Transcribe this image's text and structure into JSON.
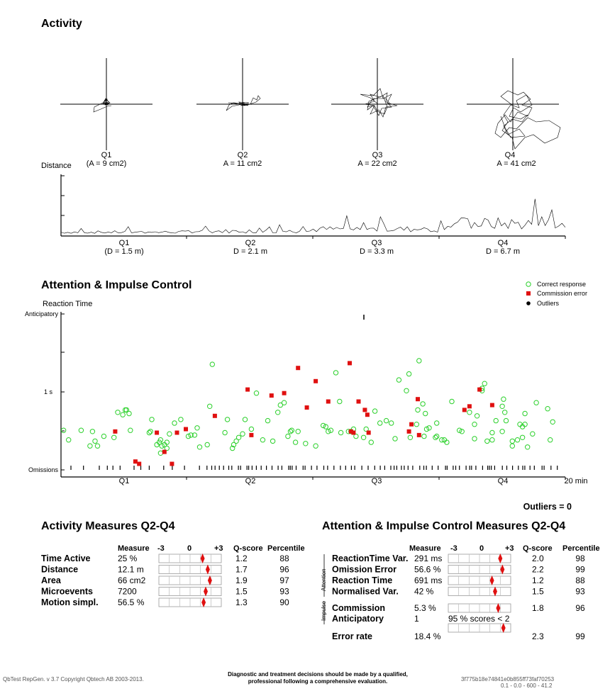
{
  "activity": {
    "title": "Activity",
    "quarters": [
      {
        "label": "Q1",
        "area_label": "(A = 9 cm2)",
        "area_cm2": 9
      },
      {
        "label": "Q2",
        "area_label": "A = 11 cm2",
        "area_cm2": 11
      },
      {
        "label": "Q3",
        "area_label": "A = 22 cm2",
        "area_cm2": 22
      },
      {
        "label": "Q4",
        "area_label": "A = 41 cm2",
        "area_cm2": 41
      }
    ],
    "distance_title": "Distance",
    "distance_labels": [
      {
        "q": "Q1",
        "d": "(D =  1.5 m)"
      },
      {
        "q": "Q2",
        "d": "D =  2.1 m"
      },
      {
        "q": "Q3",
        "d": "D =  3.3 m"
      },
      {
        "q": "Q4",
        "d": "D =  6.7 m"
      }
    ]
  },
  "attention": {
    "title": "Attention & Impulse Control",
    "y_title": "Reaction Time",
    "y_ticks": [
      "Anticipatory",
      "1 s",
      "Omissions"
    ],
    "x_labels": [
      "Q1",
      "Q2",
      "Q3",
      "Q4"
    ],
    "x_end_label": "20 min",
    "legend": {
      "correct": "Correct response",
      "commission": "Commission error",
      "outliers": "Outliers"
    },
    "outliers_text": "Outliers = 0",
    "colors": {
      "correct": "#2ad02a",
      "commission": "#e01010",
      "outlier": "#000000"
    }
  },
  "activity_measures": {
    "title": "Activity Measures Q2-Q4",
    "headers": {
      "measure": "Measure",
      "scale_min": "-3",
      "scale_mid": "0",
      "scale_max": "+3",
      "qscore": "Q-score",
      "percentile": "Percentile"
    },
    "rows": [
      {
        "name": "Time Active",
        "measure": "25 %",
        "q": "1.2",
        "qv": 1.2,
        "pct": "88"
      },
      {
        "name": "Distance",
        "measure": "12.1 m",
        "q": "1.7",
        "qv": 1.7,
        "pct": "96"
      },
      {
        "name": "Area",
        "measure": "66 cm2",
        "q": "1.9",
        "qv": 1.9,
        "pct": "97"
      },
      {
        "name": "Microevents",
        "measure": "7200",
        "q": "1.5",
        "qv": 1.5,
        "pct": "93"
      },
      {
        "name": "Motion simpl.",
        "measure": "56.5 %",
        "q": "1.3",
        "qv": 1.3,
        "pct": "90"
      }
    ]
  },
  "attention_measures": {
    "title": "Attention & Impulse Control Measures Q2-Q4",
    "headers": {
      "measure": "Measure",
      "scale_min": "-3",
      "scale_mid": "0",
      "scale_max": "+3",
      "qscore": "Q-score",
      "percentile": "Percentile"
    },
    "group_attention": "Attention",
    "group_impulse": "Impulse",
    "rows": [
      {
        "name": "ReactionTime Var.",
        "measure": "291 ms",
        "q": "2.0",
        "qv": 2.0,
        "pct": "98"
      },
      {
        "name": "Omission Error",
        "measure": "56.6 %",
        "q": "2.2",
        "qv": 2.2,
        "pct": "99"
      },
      {
        "name": "Reaction Time",
        "measure": "691 ms",
        "q": "1.2",
        "qv": 1.2,
        "pct": "88"
      },
      {
        "name": "Normalised Var.",
        "measure": "42 %",
        "q": "1.5",
        "qv": 1.5,
        "pct": "93"
      }
    ],
    "impulse_rows": [
      {
        "name": "Commission",
        "measure": "5.3 %",
        "q": "1.8",
        "qv": 1.8,
        "pct": "96"
      },
      {
        "name": "Anticipatory",
        "measure": "1",
        "note": "95 % scores < 2"
      }
    ],
    "error_rate": {
      "name": "Error rate",
      "measure": "18.4 %",
      "q": "2.3",
      "qv": 2.3,
      "pct": "99"
    }
  },
  "footer": {
    "left": "QbTest RepGen. v 3.7 Copyright Qbtech AB 2003-2013.",
    "center1": "Diagnostic and treatment decisions should be made by a qualified,",
    "center2": "professional following a comprehensive evaluation.",
    "right1": "3f775b18e74841e0b855ff73faf70253",
    "right2": "0.1 - 0.0 - 600 - 41.2"
  },
  "chart_data": [
    {
      "type": "line",
      "title": "Distance",
      "categories": [
        "Q1",
        "Q2",
        "Q3",
        "Q4"
      ],
      "values": [
        1.5,
        2.1,
        3.3,
        6.7
      ]
    },
    {
      "type": "scatter",
      "title": "Attention & Impulse Control",
      "ylabel": "Reaction Time",
      "xlabel": "20 min",
      "x_range": [
        0,
        20
      ],
      "series": [
        {
          "name": "Correct response",
          "x_unit": "min",
          "y_unit": "s",
          "points": [
            [
              0.1,
              0.68
            ],
            [
              0.3,
              0.6
            ],
            [
              0.8,
              0.68
            ],
            [
              1.15,
              0.55
            ],
            [
              1.25,
              0.67
            ],
            [
              1.35,
              0.59
            ],
            [
              1.45,
              0.55
            ],
            [
              1.7,
              0.63
            ],
            [
              2.1,
              0.62
            ],
            [
              2.25,
              0.83
            ],
            [
              2.45,
              0.81
            ],
            [
              2.55,
              0.85
            ],
            [
              2.6,
              0.85
            ],
            [
              2.7,
              0.82
            ],
            [
              2.75,
              0.68
            ],
            [
              3.5,
              0.66
            ],
            [
              3.55,
              0.67
            ],
            [
              3.6,
              0.77
            ],
            [
              3.8,
              0.56
            ],
            [
              3.9,
              0.58
            ],
            [
              3.95,
              0.6
            ],
            [
              4.0,
              0.55
            ],
            [
              4.1,
              0.56
            ],
            [
              4.2,
              0.58
            ],
            [
              4.3,
              0.65
            ],
            [
              4.5,
              0.74
            ],
            [
              4.75,
              0.77
            ],
            [
              5.05,
              0.63
            ],
            [
              5.15,
              0.64
            ],
            [
              5.3,
              0.64
            ],
            [
              5.4,
              0.7
            ],
            [
              5.5,
              0.54
            ],
            [
              5.8,
              0.56
            ],
            [
              5.9,
              0.88
            ],
            [
              6.0,
              1.23
            ],
            [
              6.5,
              0.66
            ],
            [
              6.6,
              0.77
            ],
            [
              6.8,
              0.53
            ],
            [
              6.85,
              0.56
            ],
            [
              6.95,
              0.59
            ],
            [
              7.05,
              0.62
            ],
            [
              7.2,
              0.65
            ],
            [
              7.3,
              0.77
            ],
            [
              7.55,
              0.69
            ],
            [
              7.75,
              0.99
            ],
            [
              8.0,
              0.6
            ],
            [
              8.2,
              0.76
            ],
            [
              8.6,
              0.83
            ],
            [
              8.7,
              0.89
            ],
            [
              8.85,
              0.91
            ],
            [
              9.0,
              0.63
            ],
            [
              9.15,
              0.68
            ],
            [
              9.3,
              0.58
            ],
            [
              9.4,
              0.67
            ],
            [
              9.7,
              0.57
            ],
            [
              10.1,
              0.55
            ],
            [
              10.4,
              0.72
            ],
            [
              10.5,
              0.71
            ],
            [
              10.6,
              0.67
            ],
            [
              10.7,
              0.68
            ],
            [
              10.9,
              1.16
            ],
            [
              11.05,
              0.92
            ],
            [
              11.1,
              0.66
            ],
            [
              11.4,
              0.67
            ],
            [
              11.5,
              0.67
            ],
            [
              11.7,
              0.63
            ],
            [
              12.0,
              0.62
            ],
            [
              12.1,
              0.69
            ],
            [
              12.3,
              0.58
            ],
            [
              12.45,
              0.84
            ],
            [
              12.65,
              0.74
            ],
            [
              12.9,
              0.76
            ],
            [
              13.1,
              0.74
            ],
            [
              13.25,
              0.61
            ],
            [
              13.4,
              1.1
            ],
            [
              13.7,
              1.01
            ],
            [
              13.8,
              1.15
            ],
            [
              13.85,
              0.62
            ],
            [
              14.1,
              0.73
            ],
            [
              14.15,
              0.85
            ],
            [
              14.2,
              1.26
            ],
            [
              14.35,
              0.9
            ],
            [
              14.4,
              0.63
            ],
            [
              14.5,
              0.69
            ],
            [
              14.6,
              0.7
            ],
            [
              14.9,
              0.63
            ],
            [
              15.2,
              0.6
            ],
            [
              15.3,
              0.58
            ],
            [
              15.8,
              0.68
            ],
            [
              15.9,
              0.67
            ],
            [
              16.2,
              0.83
            ],
            [
              16.4,
              0.73
            ],
            [
              16.5,
              0.8
            ],
            [
              17.1,
              0.6
            ],
            [
              17.25,
              0.76
            ],
            [
              17.5,
              0.88
            ],
            [
              17.65,
              0.76
            ],
            [
              18.1,
              0.6
            ],
            [
              18.4,
              0.82
            ],
            [
              18.85,
              0.91
            ],
            [
              19.3,
              0.86
            ],
            [
              18.3,
              0.62
            ],
            [
              17.9,
              0.59
            ],
            [
              18.5,
              0.54
            ],
            [
              16.8,
              1.07
            ],
            [
              16.7,
              1.01
            ],
            [
              17.55,
              0.94
            ],
            [
              17.6,
              0.83
            ],
            [
              18.3,
              0.71
            ],
            [
              18.4,
              0.73
            ],
            [
              16.9,
              0.59
            ],
            [
              15.5,
              0.92
            ],
            [
              14.45,
              0.82
            ],
            [
              11.6,
              0.69
            ],
            [
              9.1,
              0.67
            ],
            [
              8.4,
              0.59
            ],
            [
              3.95,
              0.49
            ],
            [
              4.2,
              0.53
            ],
            [
              14.9,
              0.74
            ],
            [
              14.85,
              0.62
            ],
            [
              16.4,
              0.61
            ],
            [
              17.5,
              0.67
            ],
            [
              17.1,
              0.66
            ],
            [
              15.1,
              0.6
            ],
            [
              16.7,
              1.03
            ],
            [
              18.2,
              0.73
            ],
            [
              17.9,
              0.55
            ],
            [
              19.4,
              0.6
            ],
            [
              19.5,
              0.75
            ],
            [
              18.7,
              0.65
            ]
          ]
        },
        {
          "name": "Commission error",
          "x_unit": "min",
          "y_unit": "s",
          "points": [
            [
              2.15,
              0.67
            ],
            [
              2.95,
              0.42
            ],
            [
              3.1,
              0.4
            ],
            [
              3.8,
              0.66
            ],
            [
              4.1,
              0.5
            ],
            [
              4.4,
              0.4
            ],
            [
              4.6,
              0.66
            ],
            [
              4.95,
              0.69
            ],
            [
              6.1,
              0.8
            ],
            [
              7.4,
              1.02
            ],
            [
              7.55,
              0.64
            ],
            [
              8.35,
              0.97
            ],
            [
              8.85,
              0.99
            ],
            [
              9.4,
              1.2
            ],
            [
              9.75,
              0.87
            ],
            [
              10.1,
              1.09
            ],
            [
              10.6,
              0.92
            ],
            [
              11.5,
              0.67
            ],
            [
              11.45,
              1.24
            ],
            [
              11.6,
              0.66
            ],
            [
              11.8,
              0.92
            ],
            [
              12.05,
              0.85
            ],
            [
              12.15,
              0.81
            ],
            [
              12.2,
              0.66
            ],
            [
              13.8,
              0.67
            ],
            [
              13.9,
              0.73
            ],
            [
              14.15,
              0.94
            ],
            [
              14.2,
              0.64
            ],
            [
              16.0,
              0.85
            ],
            [
              16.2,
              0.88
            ],
            [
              16.6,
              1.02
            ],
            [
              17.1,
              0.89
            ]
          ]
        },
        {
          "name": "Outliers",
          "points": [],
          "count": 0
        }
      ]
    },
    {
      "type": "table",
      "title": "Activity Measures Q2-Q4",
      "columns": [
        "Measure",
        "Q-score",
        "Percentile"
      ],
      "rows": [
        [
          "Time Active",
          "25 %",
          1.2,
          88
        ],
        [
          "Distance",
          "12.1 m",
          1.7,
          96
        ],
        [
          "Area",
          "66 cm2",
          1.9,
          97
        ],
        [
          "Microevents",
          "7200",
          1.5,
          93
        ],
        [
          "Motion simpl.",
          "56.5 %",
          1.3,
          90
        ]
      ]
    },
    {
      "type": "table",
      "title": "Attention & Impulse Control Measures Q2-Q4",
      "columns": [
        "Measure",
        "Q-score",
        "Percentile"
      ],
      "rows": [
        [
          "ReactionTime Var.",
          "291 ms",
          2.0,
          98
        ],
        [
          "Omission Error",
          "56.6 %",
          2.2,
          99
        ],
        [
          "Reaction Time",
          "691 ms",
          1.2,
          88
        ],
        [
          "Normalised Var.",
          "42 %",
          1.5,
          93
        ],
        [
          "Commission",
          "5.3 %",
          1.8,
          96
        ],
        [
          "Anticipatory",
          "1",
          null,
          null
        ],
        [
          "Error rate",
          "18.4 %",
          2.3,
          99
        ]
      ]
    }
  ]
}
